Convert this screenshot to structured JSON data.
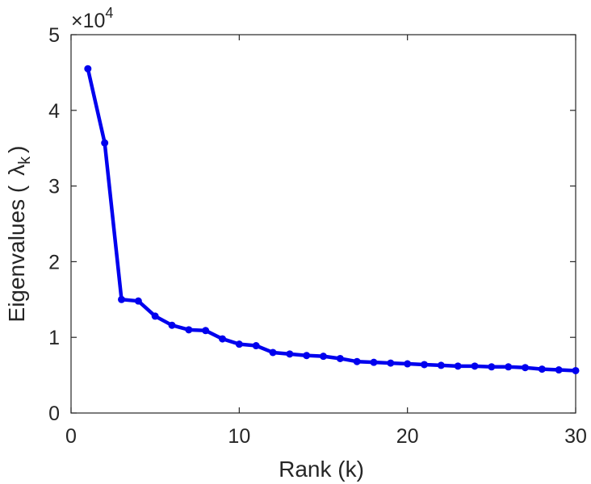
{
  "chart_data": {
    "type": "line",
    "xlabel": "Rank (k)",
    "ylabel_prefix": "Eigenvalues (",
    "ylabel_symbol": "λ",
    "ylabel_subscript": "k",
    "ylabel_suffix": ")",
    "y_multiplier_base": "×10",
    "y_multiplier_exponent": "4",
    "xlim": [
      0,
      30
    ],
    "ylim": [
      0,
      5
    ],
    "x_ticks": [
      0,
      10,
      20,
      30
    ],
    "y_ticks": [
      0,
      1,
      2,
      3,
      4,
      5
    ],
    "x_tick_labels": [
      "0",
      "10",
      "20",
      "30"
    ],
    "y_tick_labels": [
      "0",
      "1",
      "2",
      "3",
      "4",
      "5"
    ],
    "grid": false,
    "series": [
      {
        "color": "#0000ee",
        "x": [
          1,
          2,
          3,
          4,
          5,
          6,
          7,
          8,
          9,
          10,
          11,
          12,
          13,
          14,
          15,
          16,
          17,
          18,
          19,
          20,
          21,
          22,
          23,
          24,
          25,
          26,
          27,
          28,
          29,
          30
        ],
        "y": [
          4.55,
          3.57,
          1.5,
          1.48,
          1.28,
          1.16,
          1.1,
          1.09,
          0.98,
          0.91,
          0.89,
          0.8,
          0.78,
          0.76,
          0.75,
          0.72,
          0.68,
          0.67,
          0.66,
          0.65,
          0.64,
          0.63,
          0.62,
          0.62,
          0.61,
          0.61,
          0.6,
          0.58,
          0.57,
          0.56
        ]
      }
    ]
  }
}
